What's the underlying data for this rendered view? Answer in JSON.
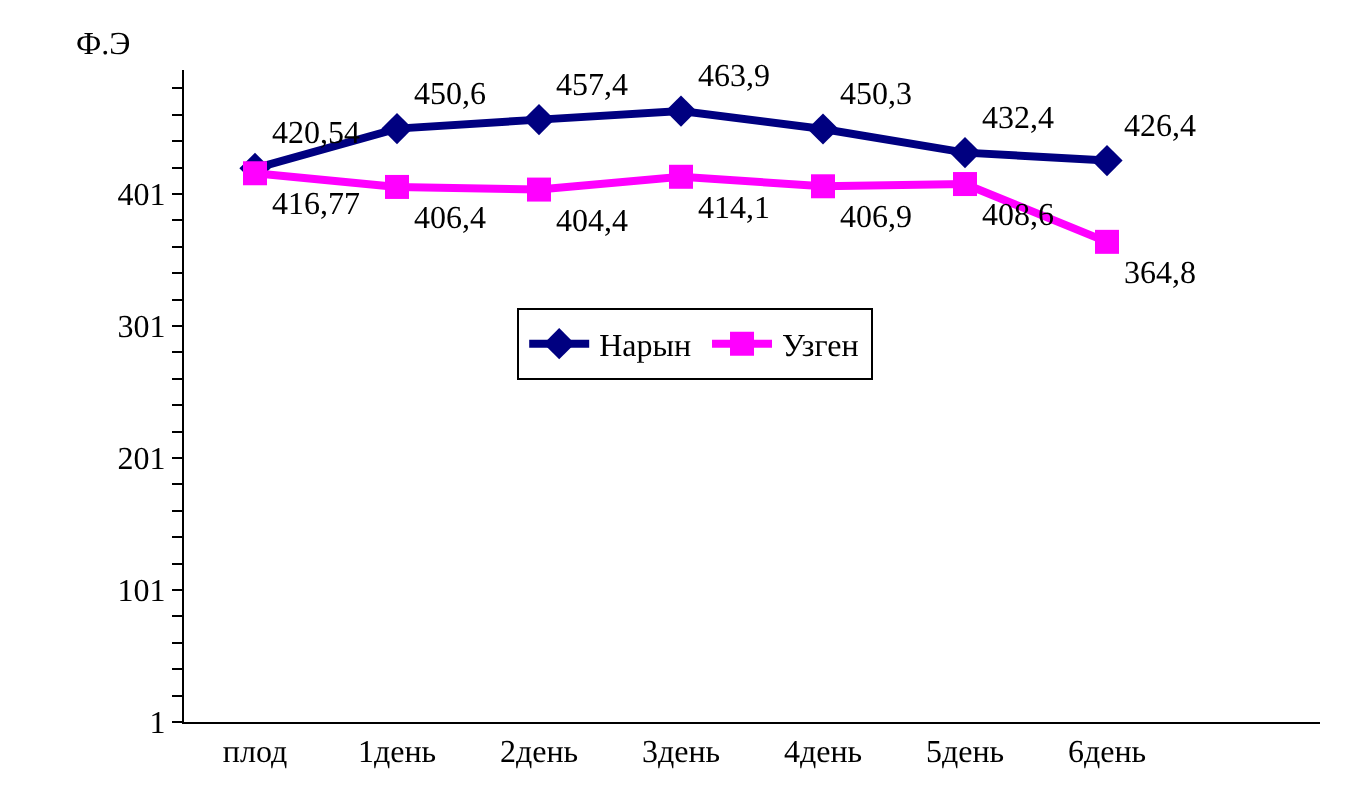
{
  "chart_data": {
    "type": "line",
    "ylabel": "Ф.Э",
    "categories": [
      "плод",
      "1день",
      "2день",
      "3день",
      "4день",
      "5день",
      "6день",
      null
    ],
    "series": [
      {
        "name": "Нарын",
        "color": "#000080",
        "marker": "diamond",
        "values": [
          420.54,
          450.6,
          457.4,
          463.9,
          450.3,
          432.4,
          426.4,
          null
        ],
        "value_labels": [
          "420,54",
          "450,6",
          "457,4",
          "463,9",
          "450,3",
          "432,4",
          "426,4",
          null
        ]
      },
      {
        "name": "Узген",
        "color": "#ff00ff",
        "marker": "square",
        "values": [
          416.77,
          406.4,
          404.4,
          414.1,
          406.9,
          408.6,
          364.8,
          null
        ],
        "value_labels": [
          "416,77",
          "406,4",
          "404,4",
          "414,1",
          "406,9",
          "408,6",
          "364,8",
          null
        ]
      }
    ],
    "ylim": [
      1,
      495
    ],
    "yticks": [
      1,
      {
        "value": 21,
        "label": null
      },
      {
        "value": 41,
        "label": null
      },
      {
        "value": 61,
        "label": null
      },
      {
        "value": 81,
        "label": null
      },
      101,
      {
        "value": 121,
        "label": null
      },
      {
        "value": 141,
        "label": null
      },
      {
        "value": 161,
        "label": null
      },
      {
        "value": 181,
        "label": null
      },
      201,
      {
        "value": 221,
        "label": null
      },
      {
        "value": 241,
        "label": null
      },
      {
        "value": 261,
        "label": null
      },
      {
        "value": 281,
        "label": null
      },
      301,
      {
        "value": 321,
        "label": null
      },
      {
        "value": 341,
        "label": null
      },
      {
        "value": 361,
        "label": null
      },
      {
        "value": 381,
        "label": null
      },
      401,
      {
        "value": 421,
        "label": null
      },
      {
        "value": 441,
        "label": null
      },
      {
        "value": 461,
        "label": null
      },
      {
        "value": 481,
        "label": null
      }
    ],
    "legend": "center",
    "line_style": "solid"
  }
}
